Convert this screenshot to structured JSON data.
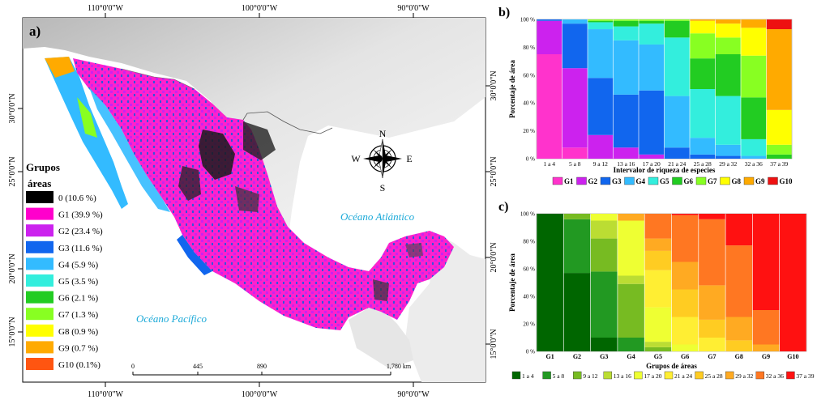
{
  "map": {
    "panel_label": "a)",
    "top_longitudes": [
      "110°0'0\"W",
      "100°0'0\"W",
      "90°0'0\"W"
    ],
    "bottom_longitudes": [
      "110°0'0\"W",
      "100°0'0\"W",
      "90°0'0\"W"
    ],
    "left_latitudes": [
      "30°0'0\"N",
      "25°0'0\"N",
      "20°0'0\"N",
      "15°0'0\"N"
    ],
    "right_latitudes": [
      "30°0'0\"N",
      "25°0'0\"N",
      "20°0'0\"N",
      "15°0'0\"N"
    ],
    "legend": {
      "title_line1": "Grupos",
      "title_line2": "áreas",
      "items": [
        {
          "label": "0 (10.6 %)",
          "color": "#000000"
        },
        {
          "label": "G1 (39.9 %)",
          "color": "#ff00cc"
        },
        {
          "label": "G2 (23.4 %)",
          "color": "#cc22ee"
        },
        {
          "label": "G3 (11.6 %)",
          "color": "#1166ee"
        },
        {
          "label": "G4 (5.9 %)",
          "color": "#33bbff"
        },
        {
          "label": "G5 (3.5 %)",
          "color": "#33eedd"
        },
        {
          "label": "G6 (2.1 %)",
          "color": "#22cc22"
        },
        {
          "label": "G7 (1.3 %)",
          "color": "#88ff22"
        },
        {
          "label": "G8 (0.9 %)",
          "color": "#ffff00"
        },
        {
          "label": "G9 (0.7 %)",
          "color": "#ffaa00"
        },
        {
          "label": "G10 (0.1%)",
          "color": "#ff5511"
        }
      ]
    },
    "compass": {
      "n": "N",
      "s": "S",
      "e": "E",
      "w": "W"
    },
    "scale": {
      "ticks": [
        "0",
        "445",
        "890",
        "1,780 km"
      ]
    },
    "ocean_atlantic": "Océano Atlántico",
    "ocean_pacific": "Océano Pacífico"
  },
  "chart_data": [
    {
      "type": "bar",
      "stacked": true,
      "panel_label": "b)",
      "xlabel": "Intervalor de riqueza de especies",
      "ylabel": "Porcentaje de área",
      "ylim": [
        0,
        100
      ],
      "yticks": [
        "0 %",
        "20 %",
        "40 %",
        "60 %",
        "80 %",
        "100 %"
      ],
      "categories": [
        "1 a 4",
        "5 a 8",
        "9 a 12",
        "13 a 16",
        "17 a 20",
        "21 a 24",
        "25 a 28",
        "29 a 32",
        "32 a 36",
        "37 a 39"
      ],
      "series": [
        {
          "name": "G1",
          "color": "#ff33cc",
          "values": [
            75,
            8,
            0,
            0,
            0,
            0,
            0,
            0,
            0,
            0
          ]
        },
        {
          "name": "G2",
          "color": "#cc22ee",
          "values": [
            24,
            57,
            17,
            8,
            3,
            0,
            0,
            0,
            0,
            0
          ]
        },
        {
          "name": "G3",
          "color": "#1166ee",
          "values": [
            1,
            32,
            41,
            38,
            46,
            8,
            3,
            2,
            0,
            0
          ]
        },
        {
          "name": "G4",
          "color": "#33bbff",
          "values": [
            0,
            3,
            35,
            39,
            33,
            37,
            12,
            8,
            2,
            0
          ]
        },
        {
          "name": "G5",
          "color": "#33eedd",
          "values": [
            0,
            0,
            5,
            10,
            15,
            42,
            35,
            35,
            12,
            0
          ]
        },
        {
          "name": "G6",
          "color": "#22cc22",
          "values": [
            0,
            0,
            1,
            4,
            2,
            12,
            22,
            30,
            30,
            3
          ]
        },
        {
          "name": "G7",
          "color": "#88ff22",
          "values": [
            0,
            0,
            1,
            1,
            1,
            1,
            18,
            12,
            30,
            7
          ]
        },
        {
          "name": "G8",
          "color": "#ffff00",
          "values": [
            0,
            0,
            0,
            0,
            0,
            0,
            9,
            10,
            20,
            25
          ]
        },
        {
          "name": "G9",
          "color": "#ffaa00",
          "values": [
            0,
            0,
            0,
            0,
            0,
            0,
            1,
            3,
            6,
            58
          ]
        },
        {
          "name": "G10",
          "color": "#ee1111",
          "values": [
            0,
            0,
            0,
            0,
            0,
            0,
            0,
            0,
            0,
            7
          ]
        }
      ]
    },
    {
      "type": "bar",
      "stacked": true,
      "panel_label": "c)",
      "xlabel": "Grupos de áreas",
      "ylabel": "Porcentaje de área",
      "ylim": [
        0,
        100
      ],
      "yticks": [
        "0 %",
        "20 %",
        "40 %",
        "60 %",
        "80 %",
        "100 %"
      ],
      "categories": [
        "G1",
        "G2",
        "G3",
        "G4",
        "G5",
        "G6",
        "G7",
        "G8",
        "G9",
        "G10"
      ],
      "series": [
        {
          "name": "1 a 4",
          "color": "#006600",
          "values": [
            100,
            57,
            10,
            0,
            0,
            0,
            0,
            0,
            0,
            0
          ]
        },
        {
          "name": "5 a 8",
          "color": "#229922",
          "values": [
            0,
            39,
            48,
            10,
            0,
            0,
            0,
            0,
            0,
            0
          ]
        },
        {
          "name": "9 a 12",
          "color": "#77bb22",
          "values": [
            0,
            4,
            24,
            39,
            3,
            0,
            0,
            0,
            0,
            0
          ]
        },
        {
          "name": "13 a 16",
          "color": "#bbdd33",
          "values": [
            0,
            0,
            13,
            6,
            4,
            0,
            0,
            0,
            0,
            0
          ]
        },
        {
          "name": "17 a 20",
          "color": "#eeff33",
          "values": [
            0,
            0,
            5,
            40,
            25,
            5,
            0,
            0,
            0,
            0
          ]
        },
        {
          "name": "21 a 24",
          "color": "#ffee33",
          "values": [
            0,
            0,
            0,
            0,
            27,
            20,
            10,
            0,
            0,
            0
          ]
        },
        {
          "name": "25 a 28",
          "color": "#ffcc22",
          "values": [
            0,
            0,
            0,
            0,
            14,
            20,
            13,
            8,
            0,
            0
          ]
        },
        {
          "name": "29 a 32",
          "color": "#ffaa22",
          "values": [
            0,
            0,
            0,
            5,
            9,
            20,
            25,
            17,
            5,
            0
          ]
        },
        {
          "name": "32 a 36",
          "color": "#ff7722",
          "values": [
            0,
            0,
            0,
            0,
            18,
            34,
            48,
            52,
            25,
            0
          ]
        },
        {
          "name": "37 a 39",
          "color": "#ff1111",
          "values": [
            0,
            0,
            0,
            0,
            0,
            1,
            4,
            23,
            70,
            100
          ]
        }
      ]
    }
  ]
}
